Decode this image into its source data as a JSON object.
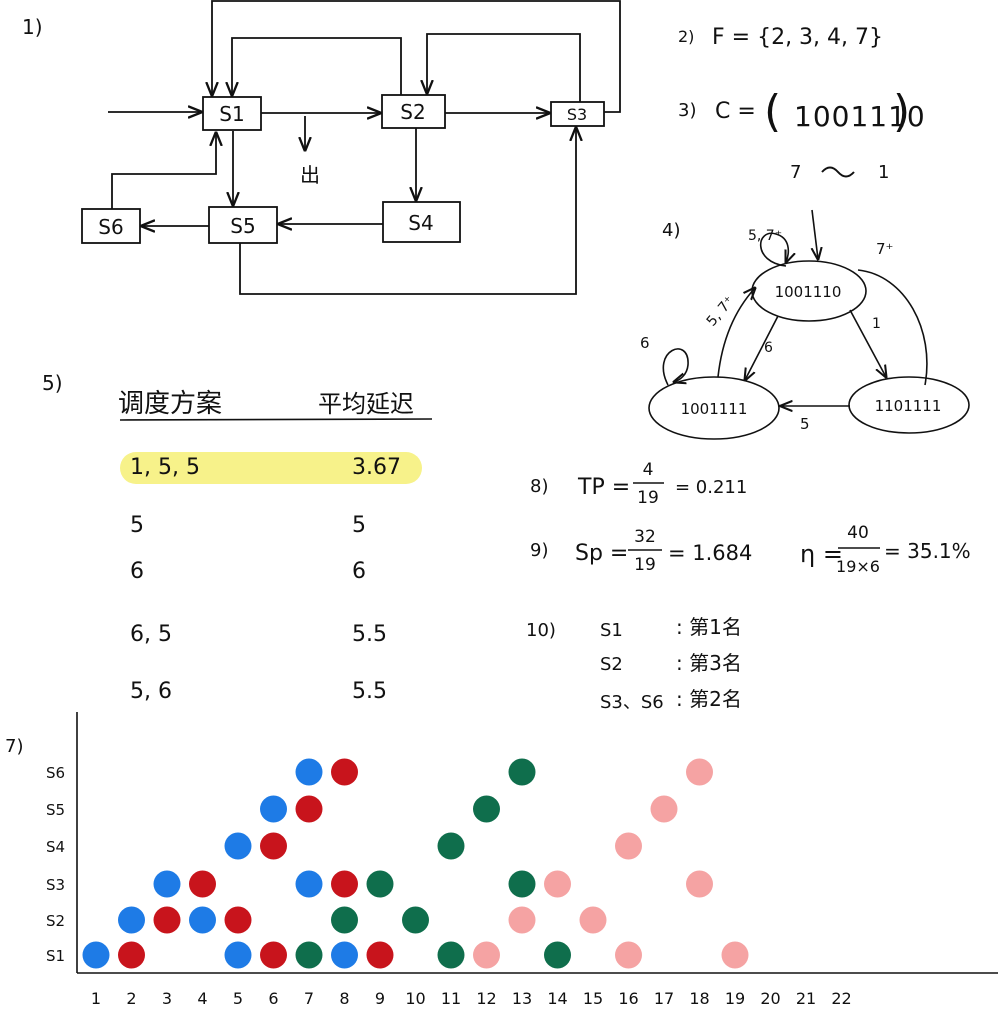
{
  "colors": {
    "ink": "#111111",
    "blue": "#1e7be6",
    "red": "#c8141c",
    "green": "#0f6e4c",
    "pink": "#f5a3a3",
    "highlight": "#f7f28a"
  },
  "section_labels": {
    "s1": "1)",
    "s2": "2)",
    "s3": "3)",
    "s4": "4)",
    "s5": "5)",
    "s7": "7)",
    "s8": "8)",
    "s9": "9)",
    "s10": "10)"
  },
  "flow": {
    "stations": [
      "S1",
      "S2",
      "S3",
      "S4",
      "S5",
      "S6"
    ],
    "exit_label": "出"
  },
  "forbidden": "F = {2, 3, 4, 7}",
  "collision": {
    "prefix": "C =",
    "vector": "1001110",
    "from": "7",
    "to": "1"
  },
  "state_graph": {
    "states": [
      "1001110",
      "1001111",
      "1101111"
    ],
    "labels": {
      "self_top": "5, 7⁺",
      "top_right": "7⁺",
      "right_to_top": "1",
      "left_to_top": "5, 7⁺",
      "top_to_left": "6",
      "self_left": "6",
      "right_to_left": "5"
    }
  },
  "schedule_table": {
    "headers": [
      "调度方案",
      "平均延迟"
    ],
    "rows": [
      {
        "plan": "1, 5, 5",
        "avg": "3.67",
        "highlight": true
      },
      {
        "plan": "5",
        "avg": "5",
        "highlight": false
      },
      {
        "plan": "6",
        "avg": "6",
        "highlight": false
      },
      {
        "plan": "6, 5",
        "avg": "5.5",
        "highlight": false
      },
      {
        "plan": "5, 6",
        "avg": "5.5",
        "highlight": false
      }
    ]
  },
  "metrics": {
    "tp": {
      "lhs": "TP =",
      "num": "4",
      "den": "19",
      "result": "= 0.211"
    },
    "sp": {
      "lhs": "Sp =",
      "num": "32",
      "den": "19",
      "result": "= 1.684"
    },
    "eta": {
      "lhs": "η =",
      "num": "40",
      "den": "19×6",
      "result": "= 35.1%"
    }
  },
  "bottleneck": [
    {
      "station": "S1",
      "text": ": 第1名"
    },
    {
      "station": "S2",
      "text": ": 第3名"
    },
    {
      "station": "S3、S6",
      "text": ": 第2名"
    }
  ],
  "chart_data": {
    "type": "scatter",
    "x_ticks": [
      "1",
      "2",
      "3",
      "4",
      "5",
      "6",
      "7",
      "8",
      "9",
      "10",
      "11",
      "12",
      "13",
      "14",
      "15",
      "16",
      "17",
      "18",
      "19",
      "20",
      "21",
      "22"
    ],
    "y_ticks": [
      "S1",
      "S2",
      "S3",
      "S4",
      "S5",
      "S6"
    ],
    "series": [
      {
        "color": "blue",
        "points": [
          [
            1,
            "S1"
          ],
          [
            2,
            "S2"
          ],
          [
            3,
            "S3"
          ],
          [
            4,
            "S2"
          ],
          [
            5,
            "S4"
          ],
          [
            5,
            "S1"
          ],
          [
            6,
            "S5"
          ],
          [
            7,
            "S6"
          ],
          [
            7,
            "S3"
          ],
          [
            8,
            "S1"
          ]
        ]
      },
      {
        "color": "red",
        "points": [
          [
            2,
            "S1"
          ],
          [
            3,
            "S2"
          ],
          [
            4,
            "S3"
          ],
          [
            5,
            "S2"
          ],
          [
            6,
            "S4"
          ],
          [
            6,
            "S1"
          ],
          [
            7,
            "S5"
          ],
          [
            8,
            "S6"
          ],
          [
            8,
            "S3"
          ],
          [
            9,
            "S1"
          ]
        ]
      },
      {
        "color": "green",
        "points": [
          [
            7,
            "S1"
          ],
          [
            8,
            "S2"
          ],
          [
            9,
            "S3"
          ],
          [
            10,
            "S2"
          ],
          [
            11,
            "S4"
          ],
          [
            11,
            "S1"
          ],
          [
            12,
            "S5"
          ],
          [
            13,
            "S6"
          ],
          [
            13,
            "S3"
          ],
          [
            14,
            "S1"
          ]
        ]
      },
      {
        "color": "pink",
        "points": [
          [
            12,
            "S1"
          ],
          [
            13,
            "S2"
          ],
          [
            14,
            "S3"
          ],
          [
            15,
            "S2"
          ],
          [
            16,
            "S4"
          ],
          [
            16,
            "S1"
          ],
          [
            17,
            "S5"
          ],
          [
            18,
            "S6"
          ],
          [
            18,
            "S3"
          ],
          [
            19,
            "S1"
          ]
        ]
      }
    ]
  }
}
